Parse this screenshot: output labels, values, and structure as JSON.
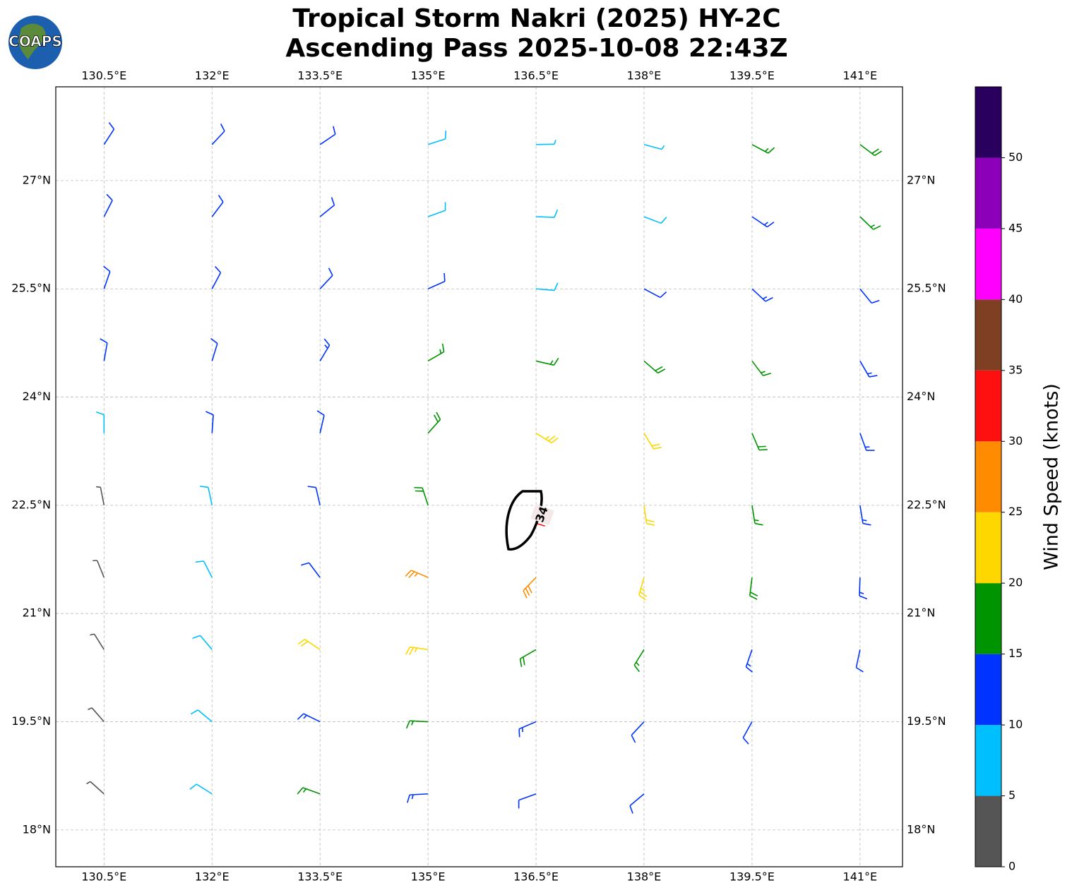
{
  "chart_data": {
    "type": "wind_barb_map",
    "title": "Tropical Storm Nakri (2025) HY-2C",
    "subtitle": "Ascending Pass 2025-10-08 22:43Z",
    "logo_text": "COAPS",
    "xlim": [
      129.83,
      141.59
    ],
    "ylim": [
      17.49,
      28.3
    ],
    "xticks": [
      {
        "value": 130.5,
        "label": "130.5°E"
      },
      {
        "value": 132,
        "label": "132°E"
      },
      {
        "value": 133.5,
        "label": "133.5°E"
      },
      {
        "value": 135,
        "label": "135°E"
      },
      {
        "value": 136.5,
        "label": "136.5°E"
      },
      {
        "value": 138,
        "label": "138°E"
      },
      {
        "value": 139.5,
        "label": "139.5°E"
      },
      {
        "value": 141,
        "label": "141°E"
      }
    ],
    "yticks": [
      {
        "value": 18,
        "label": "18°N"
      },
      {
        "value": 19.5,
        "label": "19.5°N"
      },
      {
        "value": 21,
        "label": "21°N"
      },
      {
        "value": 22.5,
        "label": "22.5°N"
      },
      {
        "value": 24,
        "label": "24°N"
      },
      {
        "value": 25.5,
        "label": "25.5°N"
      },
      {
        "value": 27,
        "label": "27°N"
      }
    ],
    "grid": true,
    "contour_label": 34,
    "wind_barbs": {
      "lon": [
        130.5,
        132,
        133.5,
        135,
        136.5,
        138,
        139.5,
        141
      ],
      "lat": [
        27.5,
        26.5,
        25.5,
        24.5,
        23.5,
        22.5,
        21.5,
        20.5,
        19.5,
        18.5
      ],
      "speed": [
        [
          12,
          12,
          12,
          8,
          6,
          6,
          17,
          18
        ],
        [
          12,
          12,
          12,
          8,
          8,
          8,
          13,
          17
        ],
        [
          12,
          12,
          12,
          12,
          8,
          12,
          14,
          12
        ],
        [
          10,
          12,
          13,
          17,
          17,
          18,
          17,
          14
        ],
        [
          8,
          10,
          12,
          18,
          23,
          22,
          18,
          14
        ],
        [
          4,
          8,
          12,
          18,
          32,
          22,
          17,
          13
        ],
        [
          4,
          8,
          12,
          27,
          28,
          24,
          18,
          13
        ],
        [
          4,
          8,
          22,
          23,
          18,
          17,
          13,
          12
        ],
        [
          3,
          8,
          13,
          17,
          13,
          12,
          12,
          null
        ],
        [
          4,
          8,
          16,
          13,
          12,
          12,
          null,
          null
        ]
      ],
      "direction": [
        [
          237,
          227,
          214,
          198,
          181,
          165,
          152,
          143
        ],
        [
          243,
          233,
          219,
          200,
          178,
          159,
          146,
          136
        ],
        [
          251,
          242,
          227,
          204,
          175,
          152,
          137,
          129
        ],
        [
          260,
          253,
          239,
          210,
          167,
          139,
          127,
          120
        ],
        [
          270,
          266,
          257,
          228,
          148,
          121,
          113,
          110
        ],
        [
          281,
          282,
          283,
          288,
          93,
          98,
          99,
          99
        ],
        [
          292,
          297,
          307,
          337,
          46,
          74,
          83,
          88
        ],
        [
          302,
          310,
          326,
          352,
          30,
          58,
          71,
          78
        ],
        [
          311,
          320,
          334,
          357,
          23,
          47,
          61,
          null
        ],
        [
          318,
          328,
          340,
          3,
          20,
          40,
          null,
          null
        ]
      ]
    },
    "colorbar": {
      "label": "Wind Speed (knots)",
      "bins": [
        0,
        5,
        10,
        15,
        20,
        25,
        30,
        35,
        40,
        45,
        50,
        55
      ],
      "colors": [
        "#555555",
        "#00bfff",
        "#0033ff",
        "#009400",
        "#ffd700",
        "#ff8c00",
        "#ff1010",
        "#7f3f22",
        "#ff00ff",
        "#8b00b8",
        "#2a005f"
      ],
      "ticks": [
        0,
        5,
        10,
        15,
        20,
        25,
        30,
        35,
        40,
        45,
        50
      ]
    }
  }
}
